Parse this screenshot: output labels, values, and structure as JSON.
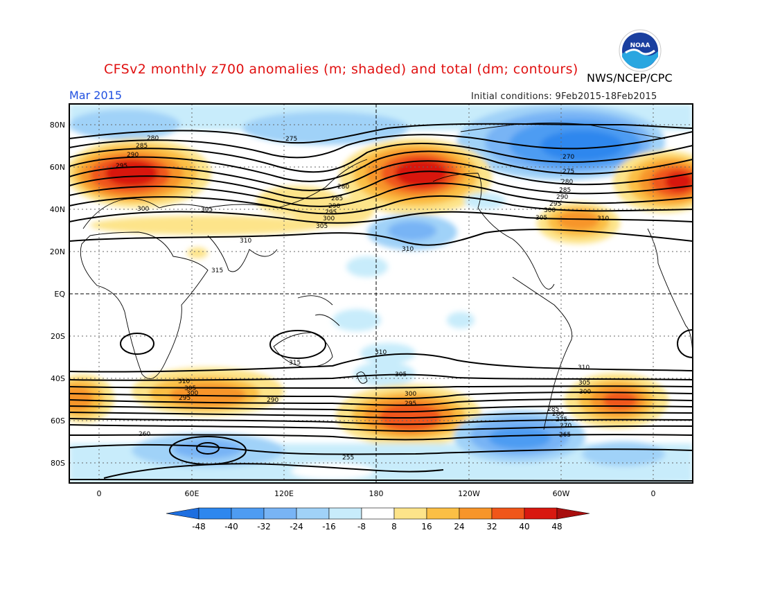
{
  "header": {
    "title": "CFSv2 monthly z700 anomalies (m; shaded) and total (dm; contours)",
    "agency": "NWS/NCEP/CPC",
    "valid_month": "Mar 2015",
    "initial_conditions": "Initial conditions: 9Feb2015-18Feb2015",
    "logo_text": "NOAA"
  },
  "map": {
    "lon_labels": [
      "0",
      "60E",
      "120E",
      "180",
      "120W",
      "60W",
      "0"
    ],
    "lat_labels": [
      "80N",
      "60N",
      "40N",
      "20N",
      "EQ",
      "20S",
      "40S",
      "60S",
      "80S"
    ]
  },
  "colorbar": {
    "levels": [
      "-48",
      "-40",
      "-32",
      "-24",
      "-16",
      "-8",
      "8",
      "16",
      "24",
      "32",
      "40",
      "48"
    ],
    "colors": [
      "#1e6fe0",
      "#2d87ee",
      "#4e9cf2",
      "#78b4f5",
      "#a0d2f8",
      "#c8ecfb",
      "#ffffff",
      "#fde48a",
      "#fbbf45",
      "#f7952a",
      "#f0561a",
      "#d81810",
      "#a80e0e"
    ]
  },
  "contour_labels": {
    "nh_left": [
      "280",
      "285",
      "290",
      "295",
      "300",
      "305",
      "310",
      "315"
    ],
    "nh_mid": [
      "275",
      "280",
      "285",
      "290",
      "295",
      "300",
      "305",
      "310"
    ],
    "nh_right": [
      "270",
      "275",
      "280",
      "285",
      "290",
      "295",
      "300",
      "305",
      "310"
    ],
    "sh": [
      "310",
      "305",
      "300",
      "295",
      "290",
      "285",
      "280",
      "275",
      "270",
      "265",
      "260",
      "255"
    ]
  }
}
